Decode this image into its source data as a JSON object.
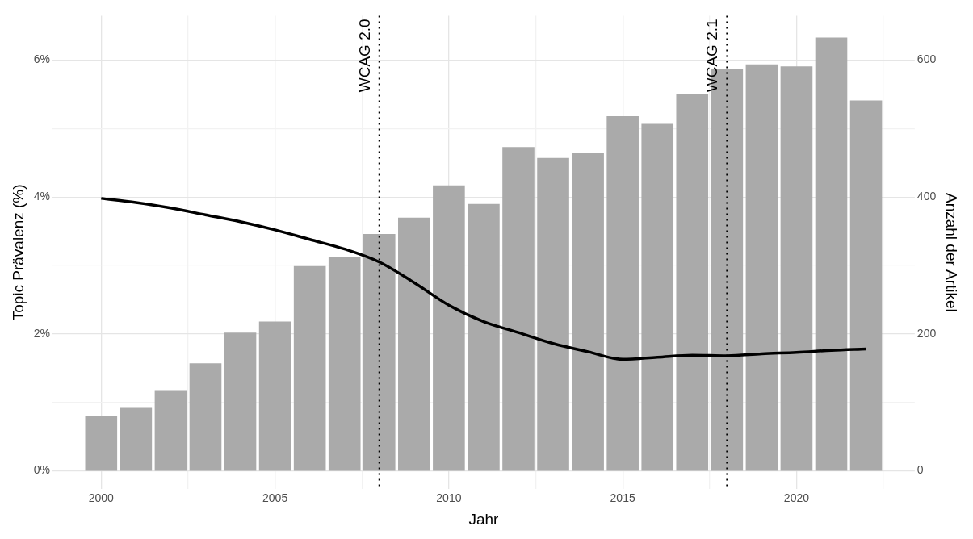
{
  "chart_data": {
    "type": "bar",
    "xlabel": "Jahr",
    "ylabel": "Topic Prävalenz (%)",
    "y2label": "Anzahl der Artikel",
    "x": [
      2000,
      2001,
      2002,
      2003,
      2004,
      2005,
      2006,
      2007,
      2008,
      2009,
      2010,
      2011,
      2012,
      2013,
      2014,
      2015,
      2016,
      2017,
      2018,
      2019,
      2020,
      2021,
      2022
    ],
    "series": [
      {
        "axis": "y2",
        "color": "#aaaaaa",
        "values": [
          80,
          92,
          118,
          157,
          202,
          218,
          299,
          313,
          346,
          370,
          417,
          390,
          473,
          457,
          464,
          518,
          507,
          550,
          587,
          594,
          591,
          633,
          541
        ]
      },
      {
        "type": "line",
        "axis": "y",
        "color": "#000000",
        "values": [
          3.98,
          3.92,
          3.84,
          3.74,
          3.64,
          3.52,
          3.38,
          3.24,
          3.05,
          2.75,
          2.42,
          2.18,
          2.02,
          1.86,
          1.74,
          1.63,
          1.66,
          1.69,
          1.68,
          1.71,
          1.73,
          1.76,
          1.78
        ]
      }
    ],
    "xlim": [
      1998.6,
      2023.4
    ],
    "xticks": [
      2000,
      {
        "value": 2002.5,
        "label": null
      },
      2005,
      {
        "value": 2007.5,
        "label": null
      },
      2010,
      {
        "value": 2012.5,
        "label": null
      },
      2015,
      {
        "value": 2017.5,
        "label": null
      },
      2020,
      {
        "value": 2022.5,
        "label": null
      }
    ],
    "ylim": [
      -0.27,
      6.65
    ],
    "yticks": [
      {
        "value": 0,
        "label": "0%"
      },
      {
        "value": 1,
        "label": null
      },
      {
        "value": 2,
        "label": "2%"
      },
      {
        "value": 3,
        "label": null
      },
      {
        "value": 4,
        "label": "4%"
      },
      {
        "value": 5,
        "label": null
      },
      {
        "value": 6,
        "label": "6%"
      }
    ],
    "y2lim": [
      -27,
      665
    ],
    "y2ticks": [
      0,
      200,
      400,
      600
    ],
    "ref_lines": [
      {
        "axis": "x",
        "value": 2008,
        "label": "WCAG 2.0",
        "color": "#000000",
        "line_style": "dotted"
      },
      {
        "axis": "x",
        "value": 2018,
        "label": "WCAG 2.1",
        "color": "#000000",
        "line_style": "dotted"
      }
    ],
    "grid": true,
    "legend": false
  }
}
